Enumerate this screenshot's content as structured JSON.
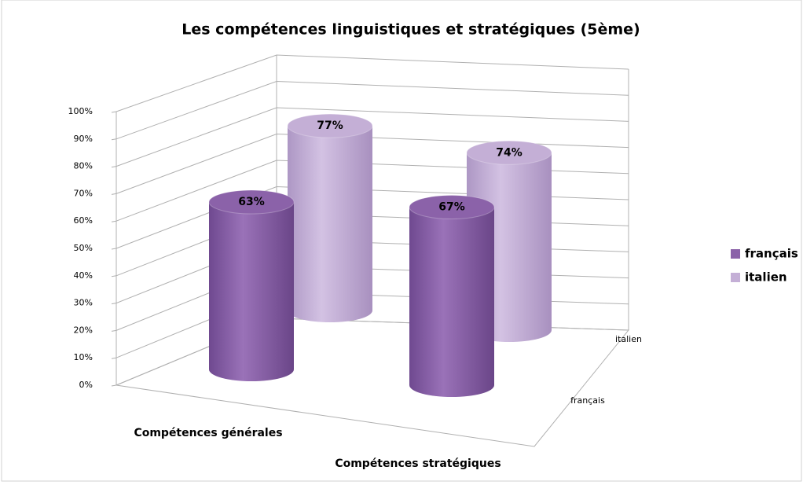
{
  "chart_data": {
    "type": "bar3d",
    "title": "Les compétences linguistiques et stratégiques (5ème)",
    "categories": [
      "Compétences générales",
      "Compétences stratégiques"
    ],
    "series": [
      {
        "name": "français",
        "color": "#8b62a9",
        "values": [
          63,
          67
        ],
        "value_labels": [
          "63%",
          "67%"
        ]
      },
      {
        "name": "italien",
        "color": "#c4afd6",
        "values": [
          77,
          74
        ],
        "value_labels": [
          "77%",
          "74%"
        ]
      }
    ],
    "ylim": [
      0,
      100
    ],
    "yticks": [
      {
        "value": 0,
        "label": "0%"
      },
      {
        "value": 10,
        "label": "10%"
      },
      {
        "value": 20,
        "label": "20%"
      },
      {
        "value": 30,
        "label": "30%"
      },
      {
        "value": 40,
        "label": "40%"
      },
      {
        "value": 50,
        "label": "50%"
      },
      {
        "value": 60,
        "label": "60%"
      },
      {
        "value": 70,
        "label": "70%"
      },
      {
        "value": 80,
        "label": "80%"
      },
      {
        "value": 90,
        "label": "90%"
      },
      {
        "value": 100,
        "label": "100%"
      }
    ],
    "grid": true,
    "legend": "right"
  }
}
